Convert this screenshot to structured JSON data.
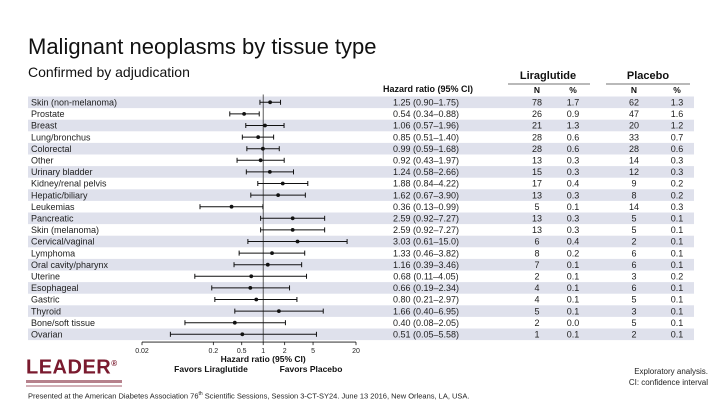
{
  "title": "Malignant neoplasms by tissue type",
  "subtitle": "Confirmed by adjudication",
  "logo": {
    "text": "LEADER",
    "mark": "®"
  },
  "footnote": [
    "Exploratory analysis.",
    "CI: confidence interval"
  ],
  "footer": {
    "before": "Presented at the American Diabetes Association 76",
    "sup": "th",
    "after": " Scientific Sessions, Session 3-CT-SY24. June 13 2016, New Orleans, LA, USA."
  },
  "colors": {
    "row_band": "#dfe1ec",
    "accent_logo": "#7a1a2e"
  },
  "chart_data": {
    "type": "forest",
    "x_scale": "log",
    "xlim": [
      0.02,
      20
    ],
    "x_ticks": [
      0.02,
      0.2,
      0.5,
      1,
      2,
      5,
      20
    ],
    "x_tick_labels": [
      "0.02",
      "0.2",
      "0.5",
      "1",
      "2",
      "5",
      "20"
    ],
    "reference_line": 1,
    "xlabel": "Hazard ratio (95% CI)",
    "favors_left": "Favors Liraglutide",
    "favors_right": "Favors Placebo",
    "hr_header": "Hazard ratio (95% CI)",
    "group_headers": [
      "Liraglutide",
      "Placebo"
    ],
    "col_headers": [
      "N",
      "%",
      "N",
      "%"
    ],
    "rows": [
      {
        "label": "Skin (non-melanoma)",
        "hr": 1.25,
        "lo": 0.9,
        "hi": 1.75,
        "ci": "1.25 (0.90–1.75)",
        "lira_n": "78",
        "lira_pct": "1.7",
        "plac_n": "62",
        "plac_pct": "1.3"
      },
      {
        "label": "Prostate",
        "hr": 0.54,
        "lo": 0.34,
        "hi": 0.88,
        "ci": "0.54 (0.34–0.88)",
        "lira_n": "26",
        "lira_pct": "0.9",
        "plac_n": "47",
        "plac_pct": "1.6"
      },
      {
        "label": "Breast",
        "hr": 1.06,
        "lo": 0.57,
        "hi": 1.96,
        "ci": "1.06 (0.57–1.96)",
        "lira_n": "21",
        "lira_pct": "1.3",
        "plac_n": "20",
        "plac_pct": "1.2"
      },
      {
        "label": "Lung/bronchus",
        "hr": 0.85,
        "lo": 0.51,
        "hi": 1.4,
        "ci": "0.85 (0.51–1.40)",
        "lira_n": "28",
        "lira_pct": "0.6",
        "plac_n": "33",
        "plac_pct": "0.7"
      },
      {
        "label": "Colorectal",
        "hr": 0.99,
        "lo": 0.59,
        "hi": 1.68,
        "ci": "0.99 (0.59–1.68)",
        "lira_n": "28",
        "lira_pct": "0.6",
        "plac_n": "28",
        "plac_pct": "0.6"
      },
      {
        "label": "Other",
        "hr": 0.92,
        "lo": 0.43,
        "hi": 1.97,
        "ci": "0.92 (0.43–1.97)",
        "lira_n": "13",
        "lira_pct": "0.3",
        "plac_n": "14",
        "plac_pct": "0.3"
      },
      {
        "label": "Urinary bladder",
        "hr": 1.24,
        "lo": 0.58,
        "hi": 2.66,
        "ci": "1.24 (0.58–2.66)",
        "lira_n": "15",
        "lira_pct": "0.3",
        "plac_n": "12",
        "plac_pct": "0.3"
      },
      {
        "label": "Kidney/renal pelvis",
        "hr": 1.88,
        "lo": 0.84,
        "hi": 4.22,
        "ci": "1.88 (0.84–4.22)",
        "lira_n": "17",
        "lira_pct": "0.4",
        "plac_n": "9",
        "plac_pct": "0.2"
      },
      {
        "label": "Hepatic/biliary",
        "hr": 1.62,
        "lo": 0.67,
        "hi": 3.9,
        "ci": "1.62 (0.67–3.90)",
        "lira_n": "13",
        "lira_pct": "0.3",
        "plac_n": "8",
        "plac_pct": "0.2"
      },
      {
        "label": "Leukemias",
        "hr": 0.36,
        "lo": 0.13,
        "hi": 0.99,
        "ci": "0.36 (0.13–0.99)",
        "lira_n": "5",
        "lira_pct": "0.1",
        "plac_n": "14",
        "plac_pct": "0.3"
      },
      {
        "label": "Pancreatic",
        "hr": 2.59,
        "lo": 0.92,
        "hi": 7.27,
        "ci": "2.59 (0.92–7.27)",
        "lira_n": "13",
        "lira_pct": "0.3",
        "plac_n": "5",
        "plac_pct": "0.1"
      },
      {
        "label": "Skin (melanoma)",
        "hr": 2.59,
        "lo": 0.92,
        "hi": 7.27,
        "ci": "2.59 (0.92–7.27)",
        "lira_n": "13",
        "lira_pct": "0.3",
        "plac_n": "5",
        "plac_pct": "0.1"
      },
      {
        "label": "Cervical/vaginal",
        "hr": 3.03,
        "lo": 0.61,
        "hi": 15.0,
        "ci": "3.03 (0.61–15.0)",
        "lira_n": "6",
        "lira_pct": "0.4",
        "plac_n": "2",
        "plac_pct": "0.1"
      },
      {
        "label": "Lymphoma",
        "hr": 1.33,
        "lo": 0.46,
        "hi": 3.82,
        "ci": "1.33 (0.46–3.82)",
        "lira_n": "8",
        "lira_pct": "0.2",
        "plac_n": "6",
        "plac_pct": "0.1"
      },
      {
        "label": "Oral cavity/pharynx",
        "hr": 1.16,
        "lo": 0.39,
        "hi": 3.46,
        "ci": "1.16 (0.39–3.46)",
        "lira_n": "7",
        "lira_pct": "0.1",
        "plac_n": "6",
        "plac_pct": "0.1"
      },
      {
        "label": "Uterine",
        "hr": 0.68,
        "lo": 0.11,
        "hi": 4.05,
        "ci": "0.68 (0.11–4.05)",
        "lira_n": "2",
        "lira_pct": "0.1",
        "plac_n": "3",
        "plac_pct": "0.2"
      },
      {
        "label": "Esophageal",
        "hr": 0.66,
        "lo": 0.19,
        "hi": 2.34,
        "ci": "0.66 (0.19–2.34)",
        "lira_n": "4",
        "lira_pct": "0.1",
        "plac_n": "6",
        "plac_pct": "0.1"
      },
      {
        "label": "Gastric",
        "hr": 0.8,
        "lo": 0.21,
        "hi": 2.97,
        "ci": "0.80 (0.21–2.97)",
        "lira_n": "4",
        "lira_pct": "0.1",
        "plac_n": "5",
        "plac_pct": "0.1"
      },
      {
        "label": "Thyroid",
        "hr": 1.66,
        "lo": 0.4,
        "hi": 6.95,
        "ci": "1.66 (0.40–6.95)",
        "lira_n": "5",
        "lira_pct": "0.1",
        "plac_n": "3",
        "plac_pct": "0.1"
      },
      {
        "label": "Bone/soft tissue",
        "hr": 0.4,
        "lo": 0.08,
        "hi": 2.05,
        "ci": "0.40 (0.08–2.05)",
        "lira_n": "2",
        "lira_pct": "0.0",
        "plac_n": "5",
        "plac_pct": "0.1"
      },
      {
        "label": "Ovarian",
        "hr": 0.51,
        "lo": 0.05,
        "hi": 5.58,
        "ci": "0.51 (0.05–5.58)",
        "lira_n": "1",
        "lira_pct": "0.1",
        "plac_n": "2",
        "plac_pct": "0.1"
      }
    ]
  }
}
